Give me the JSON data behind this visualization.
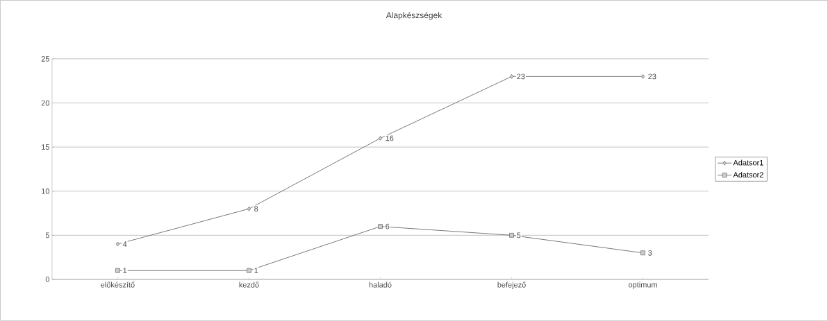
{
  "chart_data": {
    "type": "line",
    "title": "Alapkészségek",
    "categories": [
      "előkészítő",
      "kezdő",
      "haladó",
      "befejező",
      "optimum"
    ],
    "series": [
      {
        "name": "Adatsor1",
        "color": "#555555",
        "marker": "diamond",
        "values": [
          4,
          8,
          16,
          23,
          23
        ]
      },
      {
        "name": "Adatsor2",
        "color": "#555555",
        "marker": "square",
        "values": [
          1,
          1,
          6,
          5,
          3
        ]
      }
    ],
    "ylim": [
      0,
      25
    ],
    "yticks": [
      0,
      5,
      10,
      15,
      20,
      25
    ],
    "grid": "y",
    "legend": "right",
    "data_labels": true
  }
}
